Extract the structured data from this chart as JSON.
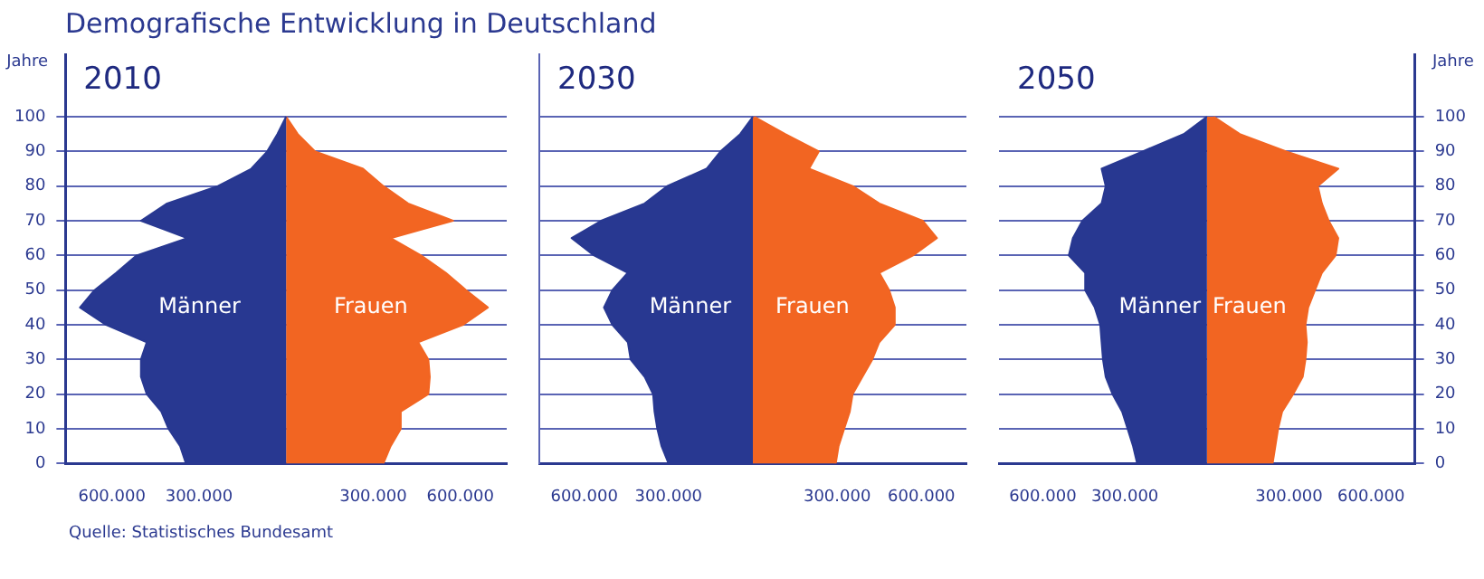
{
  "chart_data": [
    {
      "type": "area",
      "title": "Demografische Entwicklung in Deutschland",
      "subtitle": "2010",
      "orientation": "horizontal",
      "ylabel": "Jahre",
      "grid": "y",
      "annotations": [
        "Quelle: Statistisches Bundesamt"
      ],
      "x": [
        0,
        5,
        10,
        15,
        20,
        25,
        30,
        35,
        40,
        45,
        50,
        55,
        60,
        65,
        70,
        75,
        80,
        85,
        90,
        95,
        100
      ],
      "xlim": [
        -760000,
        760000
      ],
      "xticks": [
        {
          "value": -600000,
          "label": "600.000"
        },
        {
          "value": -300000,
          "label": "300.000"
        },
        {
          "value": 300000,
          "label": "300.000"
        },
        {
          "value": 600000,
          "label": "600.000"
        }
      ],
      "ylim": [
        0,
        118
      ],
      "yticks": [
        0,
        10,
        20,
        30,
        40,
        50,
        60,
        70,
        80,
        90,
        100
      ],
      "series": [
        {
          "name": "Männer",
          "color": "#283891",
          "values": [
            -345000,
            -365000,
            -405000,
            -430000,
            -480000,
            -500000,
            -500000,
            -480000,
            -620000,
            -710000,
            -660000,
            -585000,
            -515000,
            -340000,
            -500000,
            -410000,
            -235000,
            -120000,
            -65000,
            -30000,
            0
          ]
        },
        {
          "name": "Frauen",
          "color": "#f26522",
          "values": [
            335000,
            360000,
            395000,
            395000,
            490000,
            495000,
            490000,
            455000,
            610000,
            695000,
            620000,
            550000,
            465000,
            360000,
            575000,
            420000,
            335000,
            265000,
            100000,
            40000,
            0
          ]
        }
      ]
    },
    {
      "type": "area",
      "subtitle": "2030",
      "orientation": "horizontal",
      "grid": "y",
      "tick_labels": "x",
      "x": [
        0,
        5,
        10,
        15,
        20,
        25,
        30,
        35,
        40,
        45,
        50,
        55,
        60,
        65,
        70,
        75,
        80,
        85,
        90,
        95,
        100
      ],
      "xlim": [
        -760000,
        760000
      ],
      "xticks": [
        {
          "value": -600000,
          "label": "600.000"
        },
        {
          "value": -300000,
          "label": "300.000"
        },
        {
          "value": 300000,
          "label": "300.000"
        },
        {
          "value": 600000,
          "label": "600.000"
        }
      ],
      "ylim": [
        0,
        118
      ],
      "yticks": [
        0,
        10,
        20,
        30,
        40,
        50,
        60,
        70,
        80,
        90,
        100
      ],
      "series": [
        {
          "name": "Männer",
          "color": "#283891",
          "values": [
            -300000,
            -325000,
            -340000,
            -350000,
            -355000,
            -385000,
            -435000,
            -445000,
            -500000,
            -530000,
            -500000,
            -445000,
            -565000,
            -645000,
            -540000,
            -385000,
            -305000,
            -165000,
            -115000,
            -45000,
            0
          ]
        },
        {
          "name": "Frauen",
          "color": "#f26522",
          "values": [
            295000,
            305000,
            325000,
            345000,
            355000,
            390000,
            425000,
            450000,
            505000,
            505000,
            485000,
            450000,
            570000,
            655000,
            605000,
            450000,
            355000,
            200000,
            235000,
            115000,
            5000
          ]
        }
      ]
    },
    {
      "type": "area",
      "subtitle": "2050",
      "orientation": "horizontal",
      "ylabel": "Jahre",
      "grid": "y",
      "x": [
        0,
        5,
        10,
        15,
        20,
        25,
        30,
        35,
        40,
        45,
        50,
        55,
        60,
        65,
        70,
        75,
        80,
        85,
        90,
        95,
        100
      ],
      "xlim": [
        -760000,
        760000
      ],
      "xticks": [
        {
          "value": -600000,
          "label": "600.000"
        },
        {
          "value": -300000,
          "label": "300.000"
        },
        {
          "value": 300000,
          "label": "300.000"
        },
        {
          "value": 600000,
          "label": "600.000"
        }
      ],
      "ylim": [
        0,
        118
      ],
      "yticks": [
        0,
        10,
        20,
        30,
        40,
        50,
        60,
        70,
        80,
        90,
        100
      ],
      "series": [
        {
          "name": "Männer",
          "color": "#283891",
          "values": [
            -255000,
            -270000,
            -290000,
            -310000,
            -345000,
            -370000,
            -380000,
            -385000,
            -390000,
            -410000,
            -445000,
            -445000,
            -505000,
            -490000,
            -455000,
            -385000,
            -370000,
            -385000,
            -235000,
            -85000,
            0
          ]
        },
        {
          "name": "Frauen",
          "color": "#f26522",
          "values": [
            240000,
            250000,
            260000,
            275000,
            315000,
            350000,
            360000,
            365000,
            360000,
            370000,
            395000,
            420000,
            470000,
            480000,
            445000,
            420000,
            405000,
            480000,
            290000,
            120000,
            25000
          ]
        }
      ]
    }
  ]
}
